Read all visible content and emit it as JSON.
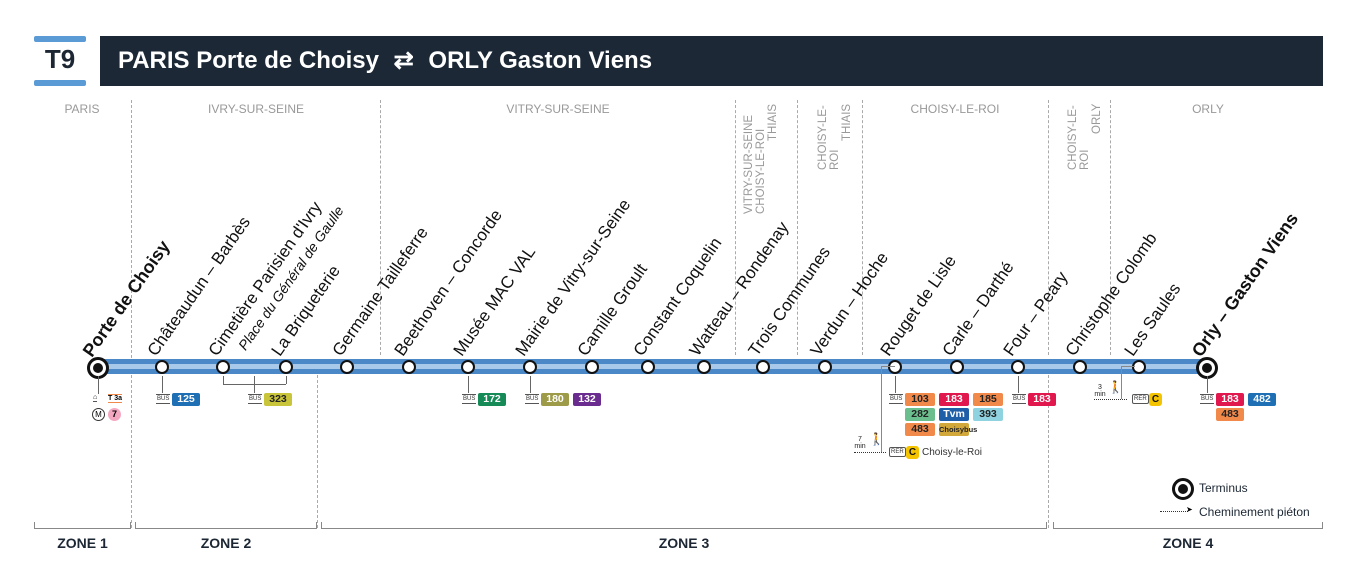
{
  "header": {
    "line": "T9",
    "from": "PARIS Porte de Choisy",
    "arrow": "⇄",
    "to": "ORLY Gaston Viens"
  },
  "communes": {
    "paris": "PARIS",
    "ivry": "IVRY-SUR-SEINE",
    "vitry": "VITRY-SUR-SEINE",
    "vitry_choisy_thiais": [
      "VITRY-SUR-SEINE",
      "CHOISY-LE-ROI",
      "THIAIS"
    ],
    "choisy_thiais": [
      "CHOISY-LE-ROI",
      "THIAIS"
    ],
    "choisy": "CHOISY-LE-ROI",
    "choisy_orly": [
      "CHOISY-LE-ROI",
      "ORLY"
    ],
    "orly": "ORLY"
  },
  "stations": [
    {
      "name": "Porte de Choisy",
      "terminus": true
    },
    {
      "name": "Châteaudun – Barbès"
    },
    {
      "name": "Cimetière Parisien d'Ivry",
      "subtitle": "Place du Général de Gaulle"
    },
    {
      "name": "La Briqueterie"
    },
    {
      "name": "Germaine Tailleferre"
    },
    {
      "name": "Beethoven – Concorde"
    },
    {
      "name": "Musée MAC VAL"
    },
    {
      "name": "Mairie de Vitry-sur-Seine"
    },
    {
      "name": "Camille Groult"
    },
    {
      "name": "Constant Coquelin"
    },
    {
      "name": "Watteau – Rondenay"
    },
    {
      "name": "Trois Communes"
    },
    {
      "name": "Verdun – Hoche"
    },
    {
      "name": "Rouget de Lisle"
    },
    {
      "name": "Carle – Darthé"
    },
    {
      "name": "Four – Peary"
    },
    {
      "name": "Christophe Colomb"
    },
    {
      "name": "Les Saules"
    },
    {
      "name": "Orly – Gaston Viens",
      "terminus": true
    }
  ],
  "connections": {
    "bus_label": "BUS",
    "rer_label": "RER",
    "porte_de_choisy": {
      "tram": "T 3a",
      "metro": "M",
      "metro_line": "7"
    },
    "chateaudun": [
      "125"
    ],
    "cimetiere_briqueterie": [
      "323"
    ],
    "mac_val": [
      "172"
    ],
    "mairie_vitry": [
      "180",
      "132"
    ],
    "rouget_de_lisle": [
      "103",
      "183",
      "185",
      "282",
      "Tvm",
      "393",
      "483",
      "Choisybus"
    ],
    "rouget_walk": {
      "minutes": "7",
      "unit": "min",
      "rer": "C",
      "station": "Choisy-le-Roi"
    },
    "four_peary": [
      "183"
    ],
    "les_saules_walk": {
      "minutes": "3",
      "unit": "min",
      "rer": "C"
    },
    "orly": [
      "183",
      "482",
      "483"
    ]
  },
  "badge_colors": {
    "125": "#1f6fb5",
    "323": "#c9c53a",
    "172": "#168a57",
    "180": "#9d9b48",
    "132": "#6a2c8e",
    "103": "#f0894a",
    "183": "#e0184d",
    "185": "#f0894a",
    "282": "#6bbf8e",
    "Tvm": "#1f5fa8",
    "393": "#8fd3e0",
    "483": "#f0894a",
    "Choisybus": "#d3a83a",
    "482": "#1f6fb5"
  },
  "legend": {
    "terminus": "Terminus",
    "walk": "Cheminement piéton"
  },
  "zones": [
    "ZONE 1",
    "ZONE 2",
    "ZONE 3",
    "ZONE 4"
  ],
  "line_color": "#4a88c7"
}
